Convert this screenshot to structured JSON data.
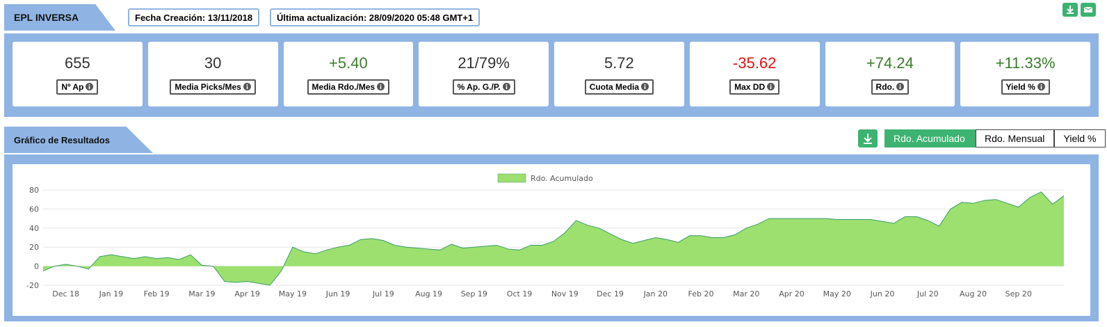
{
  "header": {
    "title": "EPL INVERSA",
    "created": "Fecha Creación: 13/11/2018",
    "updated": "Última actualización: 28/09/2020 05:48 GMT+1"
  },
  "stats": [
    {
      "value": "655",
      "label": "Nº Ap",
      "color": "#333333"
    },
    {
      "value": "30",
      "label": "Media Picks/Mes",
      "color": "#333333"
    },
    {
      "value": "+5.40",
      "label": "Media Rdo./Mes",
      "color": "#3a7d2c"
    },
    {
      "value": "21/79%",
      "label": "% Ap. G./P.",
      "color": "#333333"
    },
    {
      "value": "5.72",
      "label": "Cuota Media",
      "color": "#333333"
    },
    {
      "value": "-35.62",
      "label": "Max DD",
      "color": "#e01010"
    },
    {
      "value": "+74.24",
      "label": "Rdo.",
      "color": "#3a7d2c"
    },
    {
      "value": "+11.33%",
      "label": "Yield %",
      "color": "#3a7d2c"
    }
  ],
  "section": {
    "title": "Gráfico de Resultados",
    "buttons": [
      "Rdo. Acumulado",
      "Rdo. Mensual",
      "Yield %"
    ]
  },
  "chart_data": {
    "type": "area",
    "categories": [
      null,
      null,
      "Dec 18",
      null,
      null,
      null,
      "Jan 19",
      null,
      null,
      null,
      "Feb 19",
      null,
      null,
      null,
      "Mar 19",
      null,
      null,
      null,
      "Apr 19",
      null,
      null,
      null,
      "May 19",
      null,
      null,
      null,
      "Jun 19",
      null,
      null,
      null,
      "Jul 19",
      null,
      null,
      null,
      "Aug 19",
      null,
      null,
      null,
      "Sep 19",
      null,
      null,
      null,
      "Oct 19",
      null,
      null,
      null,
      "Nov 19",
      null,
      null,
      null,
      "Dec 19",
      null,
      null,
      null,
      "Jan 20",
      null,
      null,
      null,
      "Feb 20",
      null,
      null,
      null,
      "Mar 20",
      null,
      null,
      null,
      "Apr 20",
      null,
      null,
      null,
      "May 20",
      null,
      null,
      null,
      "Jun 20",
      null,
      null,
      null,
      "Jul 20",
      null,
      null,
      null,
      "Aug 20",
      null,
      null,
      null,
      "Sep 20",
      null,
      null,
      null,
      null
    ],
    "series": [
      {
        "name": "Rdo. Acumulado",
        "color": "#9de06f",
        "line_color": "#3a9a6a",
        "values": [
          -5,
          0,
          2,
          0,
          -3,
          10,
          12,
          10,
          8,
          10,
          8,
          9,
          7,
          12,
          1,
          0,
          -16,
          -17,
          -16,
          -18,
          -20,
          -5,
          20,
          15,
          13,
          17,
          20,
          22,
          28,
          29,
          27,
          22,
          20,
          19,
          18,
          17,
          23,
          19,
          20,
          21,
          22,
          18,
          17,
          22,
          22,
          26,
          35,
          48,
          43,
          40,
          34,
          28,
          24,
          27,
          30,
          28,
          25,
          32,
          32,
          30,
          30,
          33,
          40,
          44,
          50,
          50,
          50,
          50,
          50,
          50,
          49,
          49,
          49,
          49,
          47,
          45,
          52,
          52,
          48,
          42,
          60,
          67,
          66,
          69,
          70,
          66,
          62,
          72,
          78,
          65,
          74
        ]
      }
    ],
    "ylim": [
      -20,
      80
    ],
    "yticks": [
      -20,
      0,
      20,
      40,
      60,
      80
    ],
    "grid": true,
    "legend": "top"
  }
}
